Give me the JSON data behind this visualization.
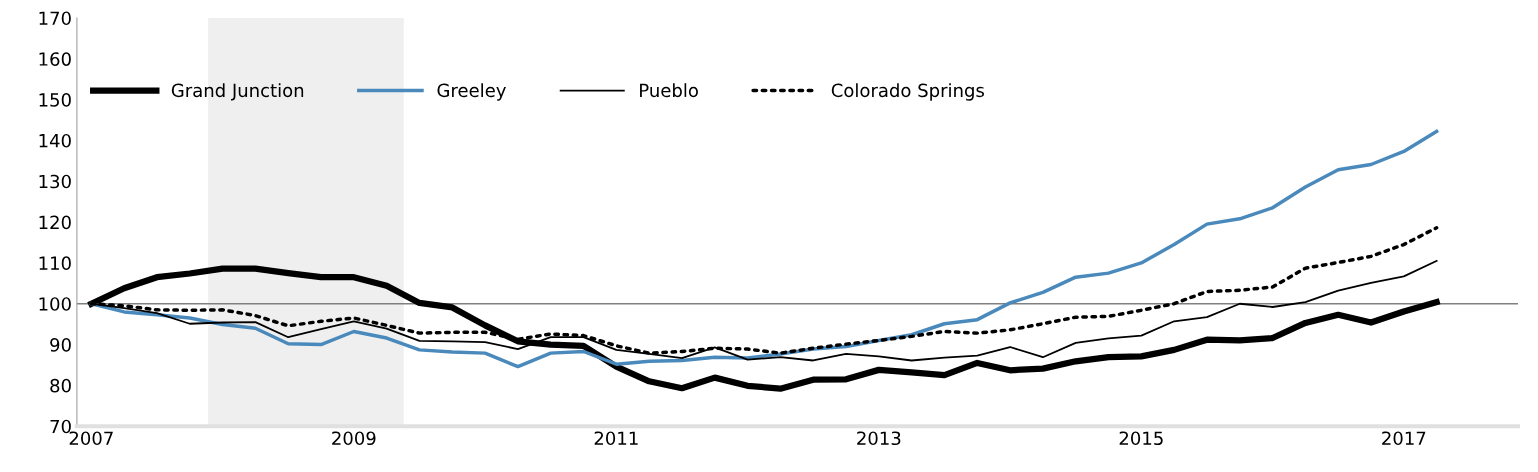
{
  "chart_data": {
    "type": "line",
    "x": [
      2007,
      2007.25,
      2007.5,
      2007.75,
      2008,
      2008.25,
      2008.5,
      2008.75,
      2009,
      2009.25,
      2009.5,
      2009.75,
      2010,
      2010.25,
      2010.5,
      2010.75,
      2011,
      2011.25,
      2011.5,
      2011.75,
      2012,
      2012.25,
      2012.5,
      2012.75,
      2013,
      2013.25,
      2013.5,
      2013.75,
      2014,
      2014.25,
      2014.5,
      2014.75,
      2015,
      2015.25,
      2015.5,
      2015.75,
      2016,
      2016.25,
      2016.5,
      2016.75,
      2017,
      2017.25
    ],
    "series": [
      {
        "name": "Grand Junction",
        "color": "#000000",
        "line_style": "solid",
        "values": [
          100,
          103.8,
          106.5,
          107.4,
          108.6,
          108.6,
          107.5,
          106.5,
          106.5,
          104.4,
          100.2,
          99.1,
          94.7,
          90.8,
          90.0,
          89.7,
          84.6,
          81.0,
          79.3,
          81.9,
          79.9,
          79.2,
          81.4,
          81.5,
          83.8,
          83.2,
          82.5,
          85.5,
          83.7,
          84.1,
          85.9,
          86.9,
          87.1,
          88.7,
          91.2,
          91.0,
          91.6,
          95.3,
          97.3,
          95.4,
          98.1,
          100.4
        ]
      },
      {
        "name": "Greeley",
        "color": "#4a89bb",
        "line_style": "solid",
        "values": [
          100,
          98.0,
          97.3,
          96.5,
          94.9,
          94.0,
          90.2,
          90.0,
          93.2,
          91.6,
          88.7,
          88.2,
          87.9,
          84.6,
          87.9,
          88.3,
          85.2,
          85.9,
          86.1,
          86.9,
          86.7,
          87.7,
          88.9,
          89.5,
          91.0,
          92.4,
          95.1,
          96.1,
          100.2,
          102.8,
          106.5,
          107.5,
          110.0,
          114.5,
          119.5,
          120.8,
          123.5,
          128.6,
          132.8,
          134.1,
          137.3,
          142.2
        ]
      },
      {
        "name": "Pueblo",
        "color": "#000000",
        "line_style": "solid",
        "values": [
          100,
          98.9,
          97.7,
          95.1,
          95.4,
          95.5,
          91.8,
          93.8,
          95.7,
          93.9,
          90.9,
          90.8,
          90.6,
          88.9,
          91.8,
          91.8,
          88.7,
          87.7,
          86.7,
          89.3,
          86.3,
          86.9,
          86.1,
          87.7,
          87.1,
          86.1,
          86.8,
          87.3,
          89.4,
          86.9,
          90.4,
          91.5,
          92.2,
          95.7,
          96.7,
          100.0,
          99.2,
          100.4,
          103.2,
          105.1,
          106.7,
          110.5
        ]
      },
      {
        "name": "Colorado Springs",
        "color": "#000000",
        "line_style": "dotted",
        "values": [
          100,
          99.5,
          98.5,
          98.4,
          98.5,
          97.1,
          94.6,
          95.7,
          96.5,
          94.7,
          92.8,
          93.0,
          93.0,
          91.3,
          92.6,
          92.2,
          89.7,
          87.9,
          88.3,
          89.1,
          88.9,
          87.9,
          89.1,
          90.1,
          91.0,
          92.0,
          93.2,
          92.8,
          93.6,
          95.1,
          96.7,
          96.9,
          98.4,
          100.0,
          103.0,
          103.3,
          104.1,
          108.7,
          110.1,
          111.6,
          114.5,
          118.6
        ]
      }
    ],
    "xlim": [
      2006.89,
      2017.87
    ],
    "xticks": [
      2007,
      2009,
      2011,
      2013,
      2015,
      2017
    ],
    "ylim": [
      70,
      170
    ],
    "yticks": [
      70,
      80,
      90,
      100,
      110,
      120,
      130,
      140,
      150,
      160,
      170
    ],
    "ref_lines": [
      {
        "axis": "y",
        "value": 100,
        "color": "#808080"
      }
    ],
    "bands": [
      {
        "axis": "x",
        "from": 2007.89,
        "to": 2009.38,
        "color": "#efefef"
      }
    ],
    "grid": false,
    "legend": "top left",
    "marker": "none"
  }
}
